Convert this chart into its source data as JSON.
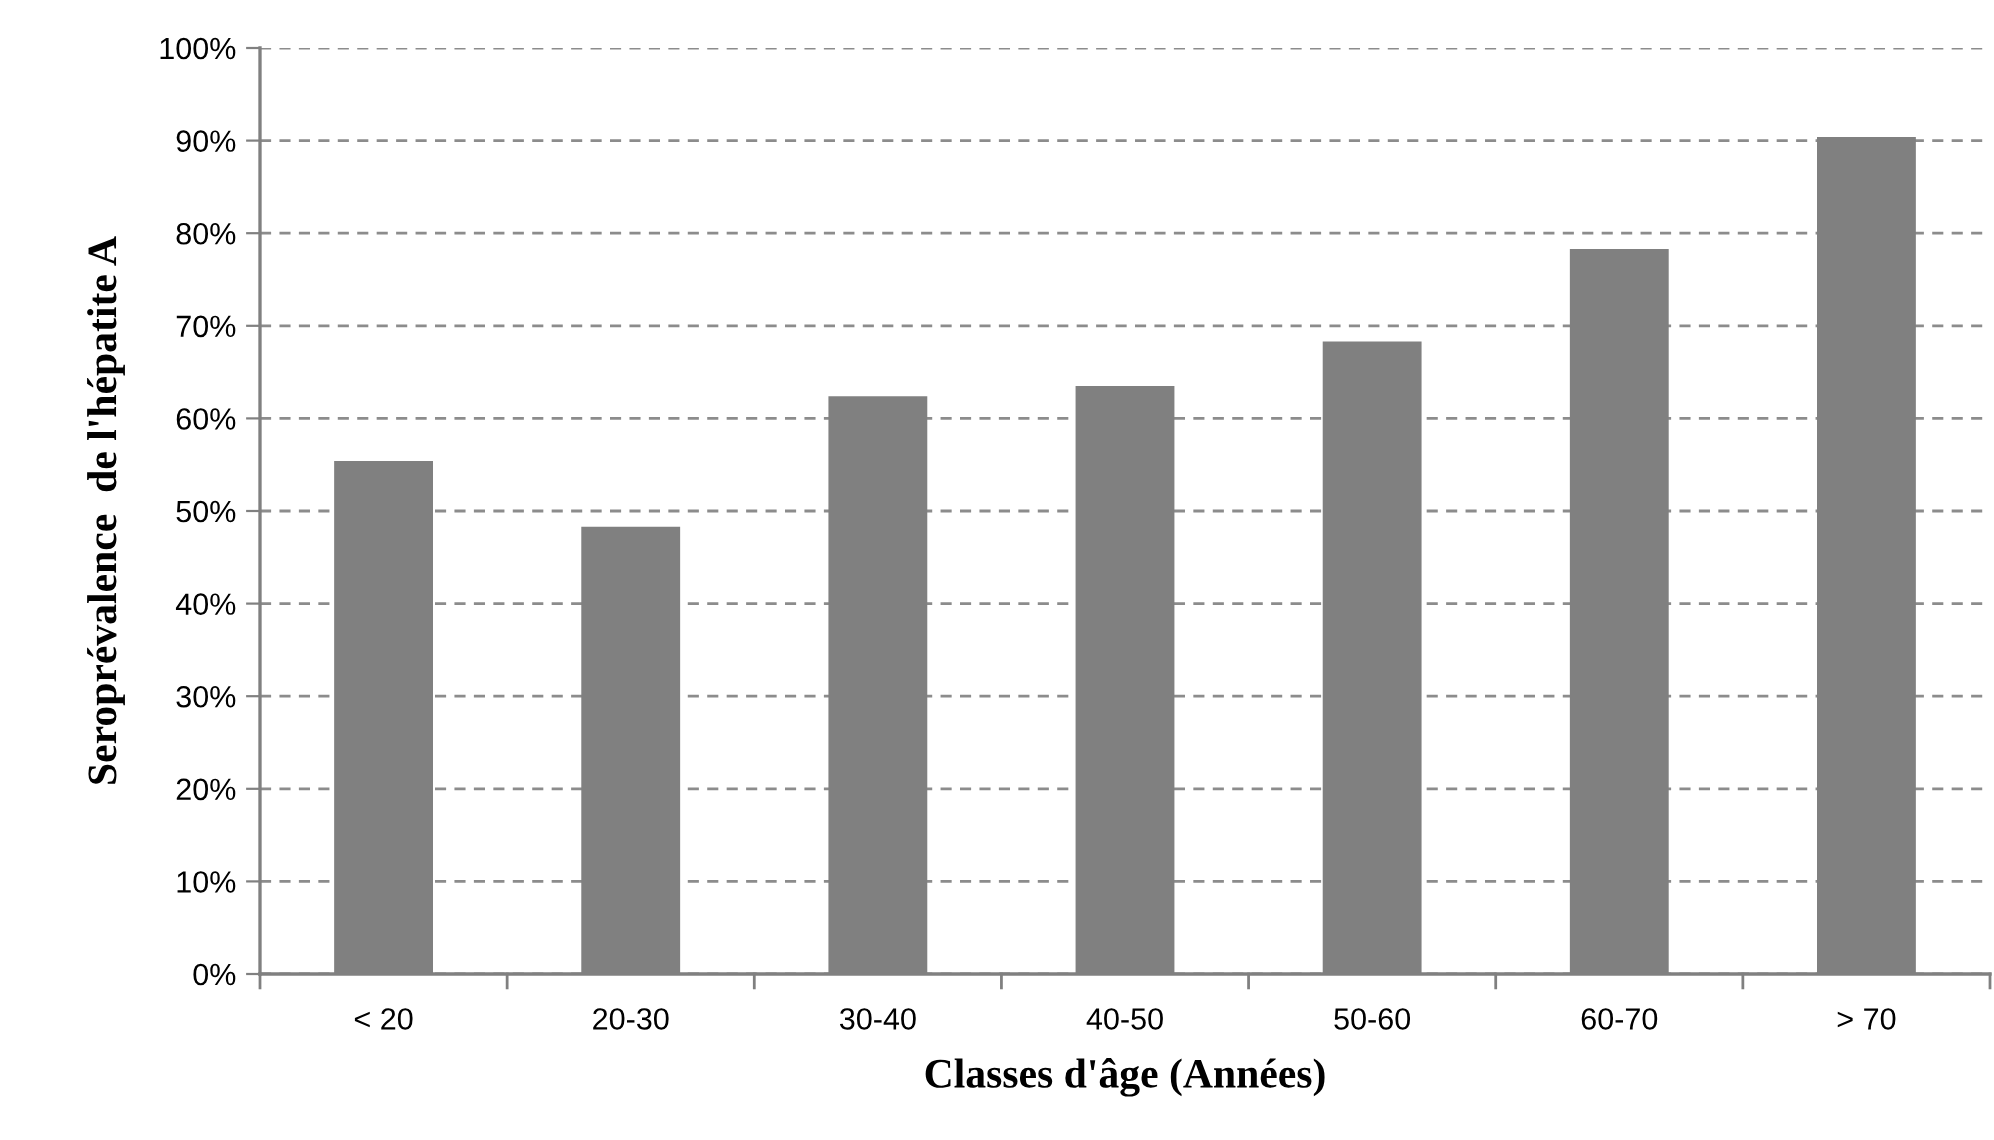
{
  "chart_data": {
    "type": "bar",
    "xlabel": "Classes d'âge (Années)",
    "ylabel": "Seroprévalence  de l'hépatite A",
    "categories": [
      "< 20",
      "20-30",
      "30-40",
      "40-50",
      "50-60",
      "60-70",
      "> 70"
    ],
    "values": [
      55.4,
      48.3,
      62.4,
      63.5,
      68.3,
      78.3,
      90.4
    ],
    "color": "#808080",
    "ylim": [
      0,
      100
    ],
    "yticks": [
      {
        "value": 0,
        "label": "0%"
      },
      {
        "value": 10,
        "label": "10%"
      },
      {
        "value": 20,
        "label": "20%"
      },
      {
        "value": 30,
        "label": "30%"
      },
      {
        "value": 40,
        "label": "40%"
      },
      {
        "value": 50,
        "label": "50%"
      },
      {
        "value": 60,
        "label": "60%"
      },
      {
        "value": 70,
        "label": "70%"
      },
      {
        "value": 80,
        "label": "80%"
      },
      {
        "value": 90,
        "label": "90%"
      },
      {
        "value": 100,
        "label": "100%"
      }
    ],
    "grid": "y",
    "legend": false
  }
}
